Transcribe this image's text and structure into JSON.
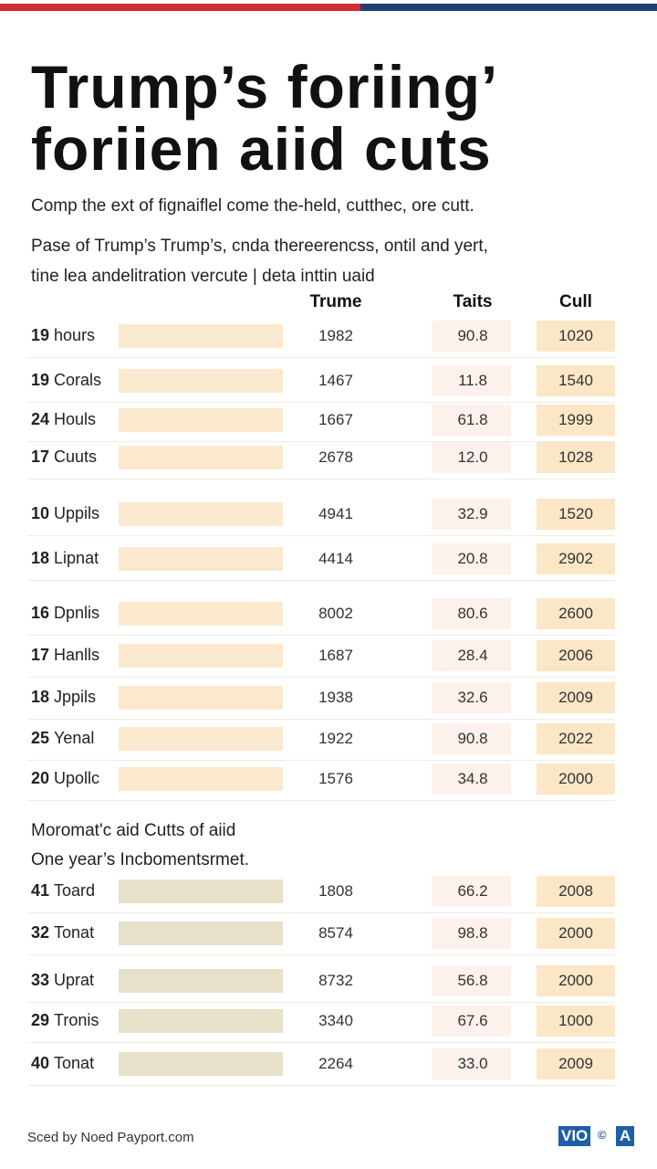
{
  "header": {
    "title_line1": "Trump’s foriing’",
    "title_line2": "foriien aiid cuts",
    "subtitle": "Comp the ext of fignaiflel come the-held, cutthec, ore cutt.",
    "description_line1": "Pase of Trump’s Trump’s, cnda thereerencss, ontil and yert,",
    "description_line2": "tine lea andelitration vercute | deta inttin uaid"
  },
  "table": {
    "columns": [
      "Trume",
      "Taits",
      "Cull"
    ],
    "rows": [
      [
        "19",
        "hours",
        "1982",
        "90.8",
        "1020"
      ],
      [
        "19",
        "Corals",
        "1467",
        "11.8",
        "1540"
      ],
      [
        "24",
        "Houls",
        "1667",
        "61.8",
        "1999"
      ],
      [
        "17",
        "Cuuts",
        "2678",
        "12.0",
        "1028"
      ],
      [
        "10",
        "Uppils",
        "4941",
        "32.9",
        "1520"
      ],
      [
        "18",
        "Lipnat",
        "4414",
        "20.8",
        "2902"
      ],
      [
        "16",
        "Dpnlis",
        "8002",
        "80.6",
        "2600"
      ],
      [
        "17",
        "Hanlls",
        "1687",
        "28.4",
        "2006"
      ],
      [
        "18",
        "Jppils",
        "1938",
        "32.6",
        "2009"
      ],
      [
        "25",
        "Yenal",
        "1922",
        "90.8",
        "2022"
      ],
      [
        "20",
        "Upollc",
        "1576",
        "34.8",
        "2000"
      ]
    ]
  },
  "section2": {
    "heading_line1": "Moromat'c aid Cutts of aiid",
    "heading_line2": "One year’s Incbomentsrmet.",
    "rows": [
      [
        "41",
        "Toard",
        "1808",
        "66.2",
        "2008"
      ],
      [
        "32",
        "Tonat",
        "8574",
        "98.8",
        "2000"
      ],
      [
        "33",
        "Uprat",
        "8732",
        "56.8",
        "2000"
      ],
      [
        "29",
        "Tronis",
        "3340",
        "67.6",
        "1000"
      ],
      [
        "40",
        "Tonat",
        "2264",
        "33.0",
        "2009"
      ]
    ]
  },
  "footer": {
    "source": "Sced by Noed Payport.com",
    "logo_left": "VIO",
    "logo_mid": "©",
    "logo_right": "A"
  }
}
